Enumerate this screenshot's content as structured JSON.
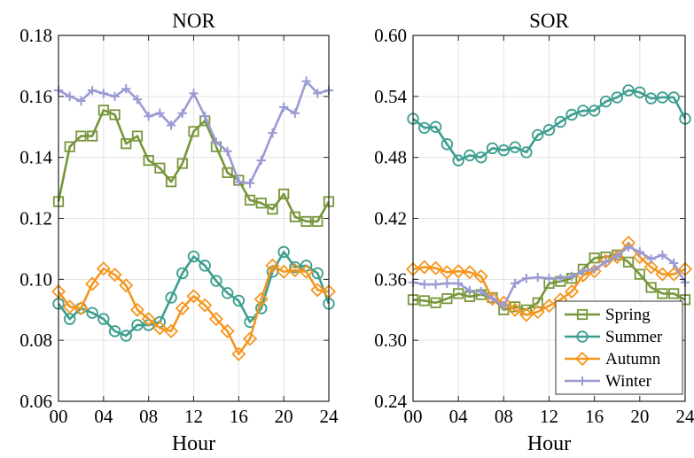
{
  "chart_data": [
    {
      "type": "line",
      "title": "NOR",
      "xlabel": "Hour",
      "ylabel": "",
      "xlim": [
        0,
        24
      ],
      "ylim": [
        0.06,
        0.18
      ],
      "xticks": [
        0,
        4,
        8,
        12,
        16,
        20,
        24
      ],
      "xtick_labels": [
        "00",
        "04",
        "08",
        "12",
        "16",
        "20",
        "24"
      ],
      "yticks": [
        0.06,
        0.08,
        0.1,
        0.12,
        0.14,
        0.16,
        0.18
      ],
      "ytick_labels": [
        "0.06",
        "0.08",
        "0.10",
        "0.12",
        "0.14",
        "0.16",
        "0.18"
      ],
      "grid": true,
      "x": [
        0,
        1,
        2,
        3,
        4,
        5,
        6,
        7,
        8,
        9,
        10,
        11,
        12,
        13,
        14,
        15,
        16,
        17,
        18,
        19,
        20,
        21,
        22,
        23,
        24
      ],
      "series": [
        {
          "name": "Spring",
          "color": "#77963a",
          "marker": "square",
          "values": [
            0.1255,
            0.1435,
            0.147,
            0.147,
            0.1555,
            0.154,
            0.1445,
            0.147,
            0.139,
            0.1365,
            0.132,
            0.138,
            0.1485,
            0.152,
            0.1435,
            0.135,
            0.1325,
            0.126,
            0.125,
            0.123,
            0.128,
            0.1205,
            0.119,
            0.119,
            0.1255
          ]
        },
        {
          "name": "Summer",
          "color": "#3c9e8f",
          "marker": "circle",
          "values": [
            0.092,
            0.087,
            0.0905,
            0.089,
            0.087,
            0.083,
            0.0815,
            0.085,
            0.085,
            0.086,
            0.094,
            0.102,
            0.1075,
            0.1045,
            0.0995,
            0.0955,
            0.093,
            0.086,
            0.0905,
            0.1025,
            0.109,
            0.104,
            0.1045,
            0.102,
            0.092
          ]
        },
        {
          "name": "Autumn",
          "color": "#f5961e",
          "marker": "diamond",
          "values": [
            0.096,
            0.091,
            0.0905,
            0.0985,
            0.1035,
            0.1015,
            0.098,
            0.09,
            0.087,
            0.084,
            0.083,
            0.0905,
            0.0945,
            0.0915,
            0.087,
            0.083,
            0.0755,
            0.0805,
            0.0935,
            0.1045,
            0.1025,
            0.103,
            0.1025,
            0.0965,
            0.096
          ]
        },
        {
          "name": "Winter",
          "color": "#9b9bd4",
          "marker": "plus",
          "values": [
            0.162,
            0.16,
            0.1585,
            0.162,
            0.161,
            0.16,
            0.1625,
            0.159,
            0.1535,
            0.1545,
            0.1505,
            0.1545,
            0.161,
            0.1535,
            0.145,
            0.142,
            0.132,
            0.1315,
            0.139,
            0.148,
            0.1565,
            0.1545,
            0.165,
            0.161,
            0.162
          ]
        }
      ]
    },
    {
      "type": "line",
      "title": "SOR",
      "xlabel": "Hour",
      "ylabel": "",
      "xlim": [
        0,
        24
      ],
      "ylim": [
        0.24,
        0.6
      ],
      "xticks": [
        0,
        4,
        8,
        12,
        16,
        20,
        24
      ],
      "xtick_labels": [
        "00",
        "04",
        "08",
        "12",
        "16",
        "20",
        "24"
      ],
      "yticks": [
        0.24,
        0.3,
        0.36,
        0.42,
        0.48,
        0.54,
        0.6
      ],
      "ytick_labels": [
        "0.24",
        "0.30",
        "0.36",
        "0.42",
        "0.48",
        "0.54",
        "0.60"
      ],
      "grid": true,
      "legend": "bottom-right",
      "x": [
        0,
        1,
        2,
        3,
        4,
        5,
        6,
        7,
        8,
        9,
        10,
        11,
        12,
        13,
        14,
        15,
        16,
        17,
        18,
        19,
        20,
        21,
        22,
        23,
        24
      ],
      "series": [
        {
          "name": "Spring",
          "color": "#77963a",
          "marker": "square",
          "values": [
            0.34,
            0.339,
            0.337,
            0.341,
            0.346,
            0.343,
            0.345,
            0.342,
            0.33,
            0.333,
            0.33,
            0.337,
            0.356,
            0.358,
            0.361,
            0.37,
            0.381,
            0.382,
            0.384,
            0.377,
            0.365,
            0.352,
            0.346,
            0.346,
            0.34
          ]
        },
        {
          "name": "Summer",
          "color": "#3c9e8f",
          "marker": "circle",
          "values": [
            0.518,
            0.509,
            0.51,
            0.493,
            0.477,
            0.482,
            0.48,
            0.489,
            0.487,
            0.49,
            0.485,
            0.502,
            0.507,
            0.515,
            0.522,
            0.526,
            0.526,
            0.535,
            0.539,
            0.546,
            0.544,
            0.538,
            0.539,
            0.539,
            0.518
          ]
        },
        {
          "name": "Autumn",
          "color": "#f5961e",
          "marker": "diamond",
          "values": [
            0.37,
            0.372,
            0.371,
            0.367,
            0.368,
            0.367,
            0.363,
            0.341,
            0.337,
            0.33,
            0.325,
            0.328,
            0.334,
            0.34,
            0.348,
            0.364,
            0.368,
            0.378,
            0.382,
            0.396,
            0.382,
            0.372,
            0.365,
            0.365,
            0.37
          ]
        },
        {
          "name": "Winter",
          "color": "#9b9bd4",
          "marker": "plus",
          "values": [
            0.357,
            0.355,
            0.355,
            0.356,
            0.356,
            0.349,
            0.348,
            0.341,
            0.334,
            0.356,
            0.361,
            0.362,
            0.361,
            0.361,
            0.363,
            0.368,
            0.37,
            0.377,
            0.383,
            0.392,
            0.387,
            0.38,
            0.384,
            0.376,
            0.357
          ]
        }
      ]
    }
  ]
}
